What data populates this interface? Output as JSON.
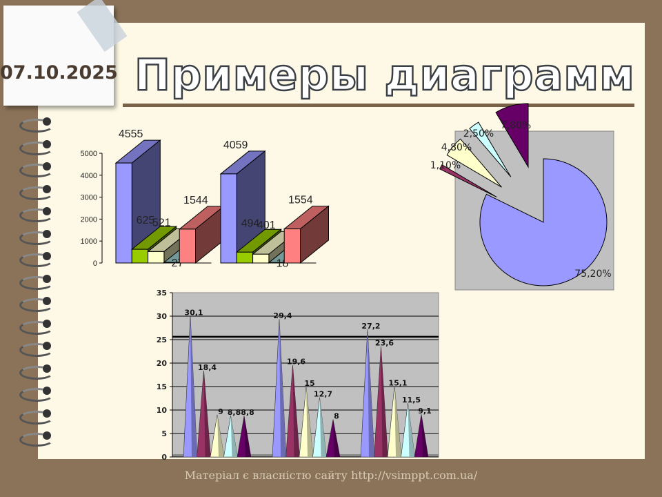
{
  "slide": {
    "date": "07.10.2025",
    "title": "Примеры диаграмм",
    "footer": "Матеріал є власністю сайту http://vsimppt.com.ua/"
  },
  "chart_data": [
    {
      "type": "bar",
      "style": "3d-column",
      "categories": [
        "",
        ""
      ],
      "ylim": [
        0,
        5000
      ],
      "yticks": [
        "0",
        "1000",
        "2000",
        "3000",
        "4000",
        "5000"
      ],
      "series": [
        {
          "values": [
            4555,
            4059
          ],
          "color": "#9999FF",
          "labels": [
            "4555",
            "4059"
          ]
        },
        {
          "values": [
            625,
            494
          ],
          "color": "#99CC00",
          "labels": [
            "625",
            "494"
          ]
        },
        {
          "values": [
            521,
            401
          ],
          "color": "#FFFFCC",
          "labels": [
            "521",
            "401"
          ]
        },
        {
          "values": [
            27,
            18
          ],
          "color": "#99CCCC",
          "labels": [
            "27",
            "18"
          ]
        },
        {
          "values": [
            1544,
            1554
          ],
          "color": "#FF8080",
          "labels": [
            "1544",
            "1554"
          ]
        }
      ]
    },
    {
      "type": "pie",
      "style": "exploded",
      "slices": [
        {
          "value": 75.2,
          "label": "75,20%",
          "color": "#9999FF"
        },
        {
          "value": 1.1,
          "label": "1,10%",
          "color": "#993366"
        },
        {
          "value": 4.8,
          "label": "4,80%",
          "color": "#FFFFCC"
        },
        {
          "value": 2.5,
          "label": "2,50%",
          "color": "#CCFFFF"
        },
        {
          "value": 7.8,
          "label": "7,80%",
          "color": "#660066"
        }
      ],
      "background": "#C0C0C0"
    },
    {
      "type": "bar",
      "style": "3d-cone",
      "categories": [
        "",
        "",
        ""
      ],
      "ylim": [
        0,
        35
      ],
      "yticks": [
        "0",
        "5",
        "10",
        "15",
        "20",
        "25",
        "30",
        "35"
      ],
      "grid": true,
      "background": "#C0C0C0",
      "series": [
        {
          "values": [
            30.1,
            29.4,
            27.2
          ],
          "color": "#9999FF",
          "labels": [
            "30,1",
            "29,4",
            "27,2"
          ]
        },
        {
          "values": [
            18.4,
            19.6,
            23.6
          ],
          "color": "#993366",
          "labels": [
            "18,4",
            "19,6",
            "23,6"
          ]
        },
        {
          "values": [
            9,
            15,
            15.1
          ],
          "color": "#FFFFCC",
          "labels": [
            "9",
            "15",
            "15,1"
          ]
        },
        {
          "values": [
            8.8,
            12.7,
            11.5
          ],
          "color": "#CCFFFF",
          "labels": [
            "8,8",
            "12,7",
            "11,5"
          ]
        },
        {
          "values": [
            8.8,
            8,
            9.1
          ],
          "color": "#660066",
          "labels": [
            "8,8",
            "8",
            "9,1"
          ]
        }
      ]
    }
  ]
}
